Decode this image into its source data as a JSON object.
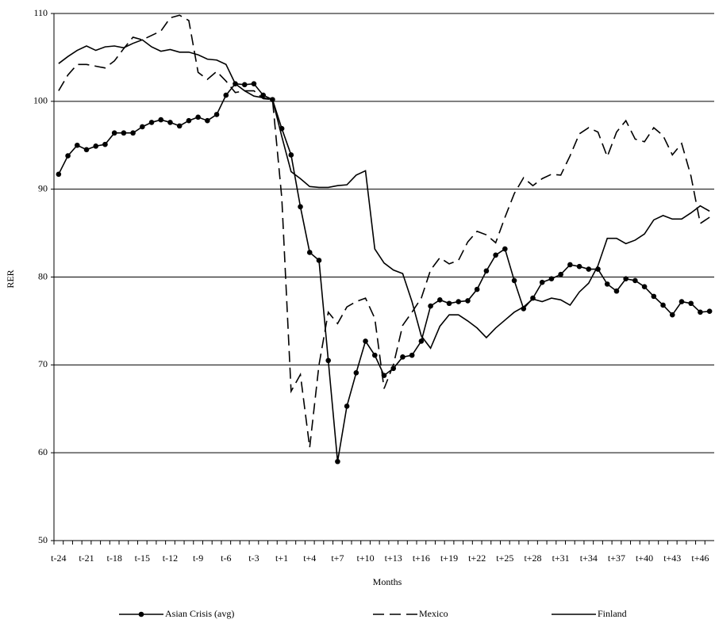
{
  "chart_data": {
    "type": "line",
    "categories": [
      "t-24",
      null,
      null,
      "t-21",
      null,
      null,
      "t-18",
      null,
      null,
      "t-15",
      null,
      null,
      "t-12",
      null,
      null,
      "t-9",
      null,
      null,
      "t-6",
      null,
      null,
      "t-3",
      null,
      null,
      "t+1",
      null,
      null,
      "t+4",
      null,
      null,
      "t+7",
      null,
      null,
      "t+10",
      null,
      null,
      "t+13",
      null,
      null,
      "t+16",
      null,
      null,
      "t+19",
      null,
      null,
      "t+22",
      null,
      null,
      "t+25",
      null,
      null,
      "t+28",
      null,
      null,
      "t+31",
      null,
      null,
      "t+34",
      null,
      null,
      "t+37",
      null,
      null,
      "t+40",
      null,
      null,
      "t+43",
      null,
      null,
      "t+46",
      null
    ],
    "x_label": "Months",
    "y_label": "RER",
    "ylim": [
      50,
      110
    ],
    "yticks": [
      50,
      60,
      70,
      80,
      90,
      100,
      110
    ],
    "grid": true,
    "legend": "bottom",
    "series": [
      {
        "name": "Asian Crisis (avg)",
        "color": "#000000",
        "line_style": "solid",
        "marker": "circle",
        "values": [
          91.7,
          93.8,
          95.0,
          94.5,
          94.9,
          95.1,
          96.4,
          96.4,
          96.4,
          97.1,
          97.6,
          97.9,
          97.6,
          97.2,
          97.8,
          98.2,
          97.8,
          98.5,
          100.7,
          102.0,
          101.9,
          102.0,
          100.7,
          100.2,
          96.9,
          93.9,
          88.0,
          82.8,
          81.9,
          70.5,
          59.0,
          65.3,
          69.1,
          72.7,
          71.1,
          68.8,
          69.6,
          70.9,
          71.1,
          72.7,
          76.7,
          77.4,
          77.0,
          77.2,
          77.3,
          78.6,
          80.7,
          82.5,
          83.2,
          79.6,
          76.4,
          77.6,
          79.4,
          79.8,
          80.3,
          81.4,
          81.2,
          80.9,
          80.9,
          79.2,
          78.4,
          79.8,
          79.6,
          78.9,
          77.8,
          76.8,
          75.7,
          77.2,
          77.0,
          76.0,
          76.1
        ]
      },
      {
        "name": "Mexico",
        "color": "#000000",
        "line_style": "dashed",
        "marker": "none",
        "values": [
          101.2,
          103.0,
          104.2,
          104.2,
          104.0,
          103.8,
          104.6,
          106.0,
          107.3,
          107.0,
          107.5,
          108.0,
          109.5,
          109.8,
          109.2,
          103.3,
          102.5,
          103.4,
          102.3,
          101.0,
          101.2,
          101.2,
          100.3,
          100.2,
          89.0,
          67.0,
          68.9,
          60.6,
          70.0,
          76.0,
          74.7,
          76.6,
          77.2,
          77.6,
          75.3,
          67.3,
          70.0,
          74.5,
          76.0,
          77.6,
          80.8,
          82.2,
          81.5,
          81.9,
          84.0,
          85.2,
          84.8,
          83.9,
          86.8,
          89.5,
          91.3,
          90.4,
          91.2,
          91.7,
          91.6,
          93.8,
          96.3,
          97.0,
          96.5,
          93.7,
          96.5,
          97.8,
          95.7,
          95.4,
          97.0,
          96.1,
          93.9,
          95.2,
          91.5,
          86.1,
          86.8
        ]
      },
      {
        "name": "Finland",
        "color": "#000000",
        "line_style": "solid",
        "marker": "none",
        "values": [
          104.3,
          105.1,
          105.8,
          106.3,
          105.8,
          106.2,
          106.3,
          106.1,
          106.6,
          107.0,
          106.2,
          105.7,
          105.9,
          105.6,
          105.6,
          105.3,
          104.8,
          104.7,
          104.2,
          102.0,
          101.2,
          100.6,
          100.4,
          100.2,
          96.0,
          92.0,
          91.2,
          90.3,
          90.2,
          90.2,
          90.4,
          90.5,
          91.6,
          92.1,
          83.2,
          81.6,
          80.8,
          80.4,
          77.2,
          73.3,
          71.9,
          74.4,
          75.7,
          75.7,
          75.0,
          74.2,
          73.1,
          74.2,
          75.1,
          76.0,
          76.6,
          77.5,
          77.2,
          77.6,
          77.4,
          76.8,
          78.3,
          79.3,
          81.3,
          84.4,
          84.4,
          83.8,
          84.2,
          84.9,
          86.5,
          87.0,
          86.6,
          86.6,
          87.3,
          88.1,
          87.5
        ]
      }
    ]
  }
}
